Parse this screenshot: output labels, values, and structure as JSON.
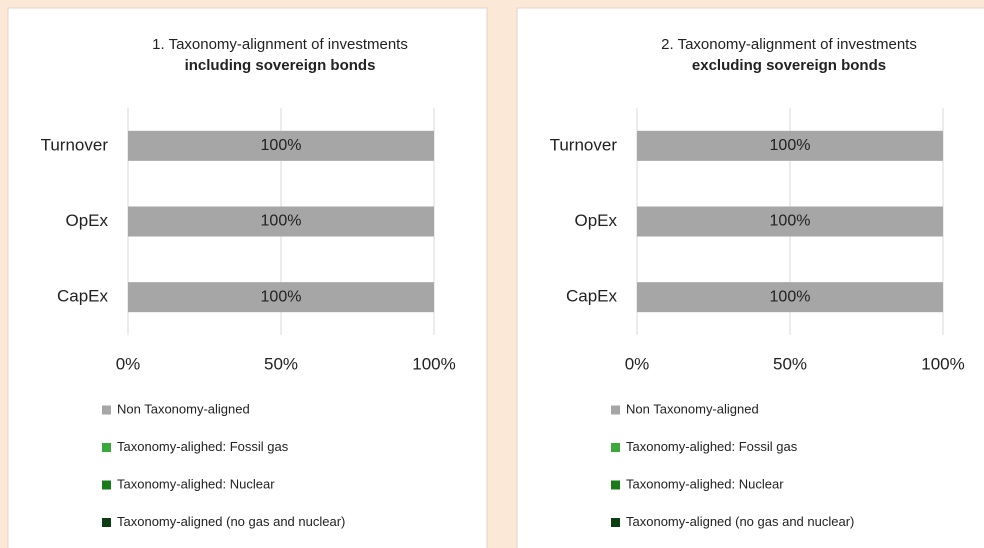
{
  "chart_data": [
    {
      "type": "bar",
      "orientation": "horizontal",
      "stacked": true,
      "title": "1. Taxonomy-alignment of investments",
      "subtitle": "including sovereign bonds",
      "categories": [
        "Turnover",
        "OpEx",
        "CapEx"
      ],
      "series": [
        {
          "name": "Non Taxonomy-aligned",
          "color": "#a6a6a6",
          "values": [
            100,
            100,
            100
          ],
          "value_labels": [
            "100%",
            "100%",
            "100%"
          ]
        },
        {
          "name": "Taxonomy-alighed: Fossil gas",
          "color": "#3aa83a",
          "values": [
            0,
            0,
            0
          ]
        },
        {
          "name": "Taxonomy-alighed: Nuclear",
          "color": "#1a7a1a",
          "values": [
            0,
            0,
            0
          ]
        },
        {
          "name": "Taxonomy-aligned (no gas and nuclear)",
          "color": "#0d3d12",
          "values": [
            0,
            0,
            0
          ]
        }
      ],
      "xlim": [
        0,
        100
      ],
      "xticks": [
        {
          "value": 0,
          "label": "0%"
        },
        {
          "value": 50,
          "label": "50%"
        },
        {
          "value": 100,
          "label": "100%"
        }
      ],
      "grid": true,
      "legend": "bottom"
    },
    {
      "type": "bar",
      "orientation": "horizontal",
      "stacked": true,
      "title": "2. Taxonomy-alignment of investments",
      "subtitle": "excluding sovereign bonds",
      "categories": [
        "Turnover",
        "OpEx",
        "CapEx"
      ],
      "series": [
        {
          "name": "Non Taxonomy-aligned",
          "color": "#a6a6a6",
          "values": [
            100,
            100,
            100
          ],
          "value_labels": [
            "100%",
            "100%",
            "100%"
          ]
        },
        {
          "name": "Taxonomy-alighed: Fossil gas",
          "color": "#3aa83a",
          "values": [
            0,
            0,
            0
          ]
        },
        {
          "name": "Taxonomy-alighed: Nuclear",
          "color": "#1a7a1a",
          "values": [
            0,
            0,
            0
          ]
        },
        {
          "name": "Taxonomy-aligned (no gas and nuclear)",
          "color": "#0d3d12",
          "values": [
            0,
            0,
            0
          ]
        }
      ],
      "xlim": [
        0,
        100
      ],
      "xticks": [
        {
          "value": 0,
          "label": "0%"
        },
        {
          "value": 50,
          "label": "50%"
        },
        {
          "value": 100,
          "label": "100%"
        }
      ],
      "grid": true,
      "legend": "bottom"
    }
  ]
}
